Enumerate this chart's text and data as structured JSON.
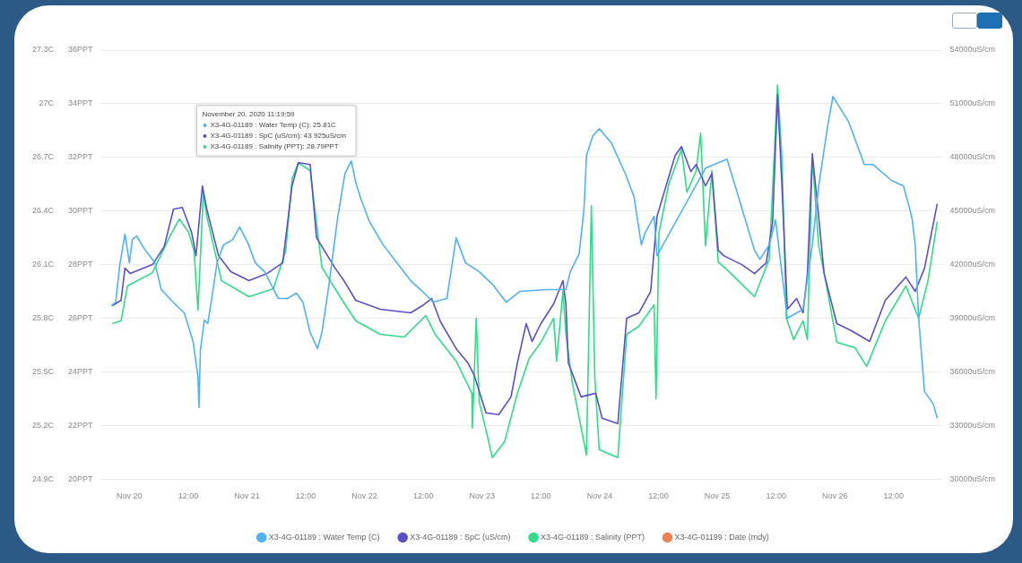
{
  "chart_data": {
    "type": "line",
    "grid": "y",
    "legend": "bottom",
    "annotations": [
      "November 20, 2020 11:19:59",
      "X3-4G-01189 : Water Temp (C): 25.81C",
      "X3-4G-01189 : SpC (uS/cm): 43 925uS/cm",
      "X3-4G-01189 : Salinity (PPT): 28.79PPT"
    ],
    "xlim": [
      "2020-11-19T18:00",
      "2020-11-26T22:00"
    ],
    "xticks": [
      {
        "value": "2020-11-20",
        "label": "Nov 20"
      },
      {
        "value": "2020-11-20T12:00",
        "label": "12:00"
      },
      {
        "value": "2020-11-21",
        "label": "Nov 21"
      },
      {
        "value": "2020-11-21T12:00",
        "label": "12:00"
      },
      {
        "value": "2020-11-22",
        "label": "Nov 22"
      },
      {
        "value": "2020-11-22T12:00",
        "label": "12:00"
      },
      {
        "value": "2020-11-23",
        "label": "Nov 23"
      },
      {
        "value": "2020-11-23T12:00",
        "label": "12:00"
      },
      {
        "value": "2020-11-24",
        "label": "Nov 24"
      },
      {
        "value": "2020-11-24T12:00",
        "label": "12:00"
      },
      {
        "value": "2020-11-25",
        "label": "Nov 25"
      },
      {
        "value": "2020-11-25T12:00",
        "label": "12:00"
      },
      {
        "value": "2020-11-26",
        "label": "Nov 26"
      },
      {
        "value": "2020-11-26T12:00",
        "label": "12:00"
      }
    ],
    "ylim": [
      20,
      36
    ],
    "yticks": [
      {
        "value": 20,
        "label": "20PPT"
      },
      {
        "value": 22,
        "label": "22PPT"
      },
      {
        "value": 24,
        "label": "24PPT"
      },
      {
        "value": 26,
        "label": "26PPT"
      },
      {
        "value": 28,
        "label": "28PPT"
      },
      {
        "value": 30,
        "label": "30PPT"
      },
      {
        "value": 32,
        "label": "32PPT"
      },
      {
        "value": 34,
        "label": "34PPT"
      },
      {
        "value": 36,
        "label": "36PPT"
      }
    ],
    "y2lim": [
      24.9,
      27.3
    ],
    "y2ticks": [
      {
        "value": 24.9,
        "label": "24.9C"
      },
      {
        "value": 25.2,
        "label": "25.2C"
      },
      {
        "value": 25.5,
        "label": "25.5C"
      },
      {
        "value": 25.8,
        "label": "25.8C"
      },
      {
        "value": 26.1,
        "label": "26.1C"
      },
      {
        "value": 26.4,
        "label": "26.4C"
      },
      {
        "value": 26.7,
        "label": "26.7C"
      },
      {
        "value": 27,
        "label": "27C"
      },
      {
        "value": 27.3,
        "label": "27.3C"
      }
    ],
    "y3lim": [
      30000,
      54000
    ],
    "y3ticks": [
      {
        "value": 30000,
        "label": "30000uS/cm"
      },
      {
        "value": 33000,
        "label": "33000uS/cm"
      },
      {
        "value": 36000,
        "label": "36000uS/cm"
      },
      {
        "value": 39000,
        "label": "39000uS/cm"
      },
      {
        "value": 42000,
        "label": "42000uS/cm"
      },
      {
        "value": 45000,
        "label": "45000uS/cm"
      },
      {
        "value": 48000,
        "label": "48000uS/cm"
      },
      {
        "value": 51000,
        "label": "51000uS/cm"
      },
      {
        "value": 54000,
        "label": "54000uS/cm"
      }
    ],
    "series": [
      {
        "name": "X3-4G-01189 : Water Temp (C)",
        "color": "#4fb3f0",
        "axis": "y2",
        "x": [
          "2020-11-19T20:18",
          "2020-11-19T21:12",
          "2020-11-19T22:06",
          "2020-11-19T23:06",
          "2020-11-20T00:00",
          "2020-11-20T00:36",
          "2020-11-20T01:30",
          "2020-11-20T03:00",
          "2020-11-20T05:12",
          "2020-11-20T06:30",
          "2020-11-20T08:54",
          "2020-11-20T11:12",
          "2020-11-20T13:00",
          "2020-11-20T14:00",
          "2020-11-20T14:12",
          "2020-11-20T14:30",
          "2020-11-20T15:18",
          "2020-11-20T16:00",
          "2020-11-20T16:48",
          "2020-11-20T17:54",
          "2020-11-20T19:12",
          "2020-11-20T21:06",
          "2020-11-20T22:30",
          "2020-11-21T00:12",
          "2020-11-21T01:42",
          "2020-11-21T03:36",
          "2020-11-21T06:24",
          "2020-11-21T08:12",
          "2020-11-21T10:06",
          "2020-11-21T11:24",
          "2020-11-21T12:54",
          "2020-11-21T14:24",
          "2020-11-21T15:18",
          "2020-11-21T16:36",
          "2020-11-21T18:30",
          "2020-11-21T20:00",
          "2020-11-21T21:18",
          "2020-11-21T22:12",
          "2020-11-21T23:06",
          "2020-11-22T01:00",
          "2020-11-22T03:48",
          "2020-11-22T06:36",
          "2020-11-22T09:24",
          "2020-11-22T12:12",
          "2020-11-22T14:00",
          "2020-11-22T16:48",
          "2020-11-22T18:42",
          "2020-11-22T20:36",
          "2020-11-22T23:24",
          "2020-11-23T02:06",
          "2020-11-23T04:54",
          "2020-11-23T07:42",
          "2020-11-23T13:18",
          "2020-11-23T17:06",
          "2020-11-23T18:00",
          "2020-11-23T19:48",
          "2020-11-23T20:48",
          "2020-11-23T21:18",
          "2020-11-23T22:36",
          "2020-11-23T23:54",
          "2020-11-24T02:24",
          "2020-11-24T05:12",
          "2020-11-24T07:00",
          "2020-11-24T08:30",
          "2020-11-24T09:18",
          "2020-11-24T11:06",
          "2020-11-24T11:42",
          "2020-11-24T21:36",
          "2020-11-25T02:00",
          "2020-11-25T07:36",
          "2020-11-25T08:42",
          "2020-11-25T10:36",
          "2020-11-25T11:54",
          "2020-11-25T14:18",
          "2020-11-25T17:30",
          "2020-11-25T19:24",
          "2020-11-25T20:42",
          "2020-11-25T22:30",
          "2020-11-25T23:36",
          "2020-11-26T02:48",
          "2020-11-26T06:00",
          "2020-11-26T07:48",
          "2020-11-26T11:36",
          "2020-11-26T14:00",
          "2020-11-26T15:18",
          "2020-11-26T15:48",
          "2020-11-26T16:24",
          "2020-11-26T17:06",
          "2020-11-26T18:18",
          "2020-11-26T20:06",
          "2020-11-26T20:54"
        ],
        "values": [
          25.87,
          25.89,
          26.11,
          26.27,
          26.11,
          26.24,
          26.26,
          26.19,
          26.11,
          25.96,
          25.89,
          25.83,
          25.67,
          25.47,
          25.3,
          25.62,
          25.79,
          25.77,
          25.91,
          26.11,
          26.21,
          26.24,
          26.31,
          26.22,
          26.11,
          26.06,
          25.91,
          25.91,
          25.94,
          25.89,
          25.72,
          25.63,
          25.72,
          25.96,
          26.36,
          26.61,
          26.68,
          26.56,
          26.48,
          26.34,
          26.21,
          26.11,
          26.01,
          25.94,
          25.89,
          25.91,
          26.25,
          26.11,
          26.06,
          25.99,
          25.89,
          25.95,
          25.96,
          25.96,
          26.06,
          26.16,
          26.41,
          26.71,
          26.82,
          26.86,
          26.78,
          26.61,
          26.48,
          26.21,
          26.28,
          26.37,
          26.15,
          26.64,
          26.69,
          26.18,
          26.13,
          26.21,
          26.35,
          25.8,
          25.85,
          26.21,
          26.54,
          26.87,
          27.04,
          26.9,
          26.66,
          26.66,
          26.57,
          26.54,
          26.41,
          26.35,
          26.21,
          25.8,
          25.39,
          25.32,
          25.24
        ]
      },
      {
        "name": "X3-4G-01189 : SpC (uS/cm)",
        "color": "#5b4fc7",
        "axis": "y3",
        "x": [
          "2020-11-19T20:30",
          "2020-11-19T22:18",
          "2020-11-19T23:06",
          "2020-11-20T00:12",
          "2020-11-20T04:42",
          "2020-11-20T07:06",
          "2020-11-20T09:00",
          "2020-11-20T10:48",
          "2020-11-20T12:42",
          "2020-11-20T13:36",
          "2020-11-20T14:54",
          "2020-11-20T15:48",
          "2020-11-20T18:12",
          "2020-11-20T20:42",
          "2020-11-21T00:24",
          "2020-11-21T04:06",
          "2020-11-21T07:18",
          "2020-11-21T09:12",
          "2020-11-21T10:30",
          "2020-11-21T12:54",
          "2020-11-21T14:12",
          "2020-11-21T18:00",
          "2020-11-21T19:48",
          "2020-11-21T22:12",
          "2020-11-22T03:12",
          "2020-11-22T09:24",
          "2020-11-22T11:48",
          "2020-11-22T13:42",
          "2020-11-22T15:30",
          "2020-11-22T18:42",
          "2020-11-22T21:06",
          "2020-11-22T22:24",
          "2020-11-23T00:48",
          "2020-11-23T03:24",
          "2020-11-23T05:54",
          "2020-11-23T07:12",
          "2020-11-23T09:00",
          "2020-11-23T10:12",
          "2020-11-23T12:00",
          "2020-11-23T14:36",
          "2020-11-23T16:30",
          "2020-11-23T17:06",
          "2020-11-23T17:36",
          "2020-11-23T20:12",
          "2020-11-23T23:12",
          "2020-11-24T00:30",
          "2020-11-24T03:42",
          "2020-11-24T05:30",
          "2020-11-24T08:00",
          "2020-11-24T10:24",
          "2020-11-24T11:42",
          "2020-11-24T13:00",
          "2020-11-24T15:24",
          "2020-11-24T16:42",
          "2020-11-24T18:36",
          "2020-11-24T19:42",
          "2020-11-24T21:36",
          "2020-11-24T22:54",
          "2020-11-25T00:12",
          "2020-11-25T01:18",
          "2020-11-25T05:00",
          "2020-11-25T07:36",
          "2020-11-25T10:00",
          "2020-11-25T11:18",
          "2020-11-25T12:18",
          "2020-11-25T13:12",
          "2020-11-25T14:18",
          "2020-11-25T16:12",
          "2020-11-25T17:30",
          "2020-11-25T18:24",
          "2020-11-25T19:24",
          "2020-11-25T20:42",
          "2020-11-25T21:48",
          "2020-11-26T00:24",
          "2020-11-26T03:24",
          "2020-11-26T07:06",
          "2020-11-26T10:18",
          "2020-11-26T14:30",
          "2020-11-26T16:24",
          "2020-11-26T18:18",
          "2020-11-26T20:54"
        ],
        "values": [
          39700,
          40000,
          41800,
          41500,
          42000,
          43000,
          45100,
          45200,
          43800,
          42500,
          46400,
          45100,
          42500,
          41600,
          41100,
          41500,
          42100,
          46400,
          47700,
          47600,
          43500,
          41800,
          41100,
          40000,
          39500,
          39300,
          39700,
          40100,
          38800,
          37300,
          36500,
          35800,
          33700,
          33600,
          34600,
          36500,
          38700,
          37700,
          38700,
          39800,
          41100,
          39800,
          36500,
          34600,
          34800,
          33400,
          33100,
          39000,
          39300,
          40500,
          44700,
          45900,
          48100,
          48600,
          47200,
          47600,
          46400,
          47100,
          42800,
          42500,
          42000,
          41500,
          42100,
          44400,
          51500,
          46400,
          39500,
          40100,
          39300,
          41500,
          48200,
          44700,
          41500,
          38700,
          38300,
          37700,
          40000,
          41300,
          40500,
          41800,
          45400
        ]
      },
      {
        "name": "X3-4G-01189 : Salinity (PPT)",
        "color": "#2edc8a",
        "axis": "y",
        "x": [
          "2020-11-19T20:30",
          "2020-11-19T22:18",
          "2020-11-19T23:36",
          "2020-11-20T04:42",
          "2020-11-20T08:24",
          "2020-11-20T10:12",
          "2020-11-20T12:06",
          "2020-11-20T13:12",
          "2020-11-20T14:00",
          "2020-11-20T15:06",
          "2020-11-20T15:48",
          "2020-11-20T18:48",
          "2020-11-21T00:24",
          "2020-11-21T05:24",
          "2020-11-21T07:54",
          "2020-11-21T09:12",
          "2020-11-21T10:30",
          "2020-11-21T12:54",
          "2020-11-21T15:18",
          "2020-11-21T19:00",
          "2020-11-21T22:12",
          "2020-11-22T03:12",
          "2020-11-22T08:06",
          "2020-11-22T12:30",
          "2020-11-22T14:24",
          "2020-11-22T18:42",
          "2020-11-22T21:54",
          "2020-11-22T22:00",
          "2020-11-22T22:48",
          "2020-11-22T23:24",
          "2020-11-23T02:06",
          "2020-11-23T04:36",
          "2020-11-23T07:12",
          "2020-11-23T09:36",
          "2020-11-23T12:00",
          "2020-11-23T14:36",
          "2020-11-23T15:12",
          "2020-11-23T16:30",
          "2020-11-23T17:06",
          "2020-11-23T18:24",
          "2020-11-23T21:18",
          "2020-11-23T22:18",
          "2020-11-23T23:00",
          "2020-11-23T23:54",
          "2020-11-24T03:42",
          "2020-11-24T05:30",
          "2020-11-24T08:00",
          "2020-11-24T11:06",
          "2020-11-24T11:30",
          "2020-11-24T12:06",
          "2020-11-24T14:06",
          "2020-11-24T16:42",
          "2020-11-24T17:48",
          "2020-11-24T19:42",
          "2020-11-24T20:36",
          "2020-11-24T21:36",
          "2020-11-24T22:54",
          "2020-11-25T00:12",
          "2020-11-25T02:36",
          "2020-11-25T07:36",
          "2020-11-25T10:36",
          "2020-11-25T12:18",
          "2020-11-25T13:12",
          "2020-11-25T14:06",
          "2020-11-25T15:36",
          "2020-11-25T17:30",
          "2020-11-25T18:24",
          "2020-11-25T19:24",
          "2020-11-25T20:42",
          "2020-11-25T21:48",
          "2020-11-26T00:24",
          "2020-11-26T04:06",
          "2020-11-26T06:30",
          "2020-11-26T10:18",
          "2020-11-26T14:30",
          "2020-11-26T17:06",
          "2020-11-26T19:00",
          "2020-11-26T20:54"
        ],
        "values": [
          25.8,
          25.9,
          27.2,
          27.7,
          29.1,
          29.7,
          29.2,
          28.5,
          26.3,
          30.7,
          29.8,
          27.4,
          26.8,
          27.1,
          28.5,
          31.2,
          31.8,
          31.5,
          27.9,
          26.8,
          25.9,
          25.4,
          25.3,
          26.1,
          25.4,
          24.4,
          23.2,
          21.9,
          26.0,
          22.9,
          20.8,
          21.4,
          23.2,
          24.5,
          25.1,
          26.0,
          24.4,
          27.0,
          25.4,
          23.6,
          20.9,
          30.2,
          23.8,
          21.1,
          20.8,
          25.4,
          25.7,
          26.5,
          23.0,
          29.2,
          31.0,
          32.3,
          30.7,
          31.5,
          32.9,
          28.7,
          31.5,
          28.1,
          27.7,
          26.8,
          28.2,
          34.7,
          32.0,
          26.0,
          25.2,
          25.9,
          25.2,
          32.0,
          28.7,
          27.7,
          25.1,
          24.9,
          24.2,
          25.9,
          27.2,
          26.0,
          27.4,
          29.6
        ]
      },
      {
        "name": "X3-4G-01199 : Date (mdy)",
        "color": "#f08050",
        "axis": "y"
      }
    ]
  }
}
